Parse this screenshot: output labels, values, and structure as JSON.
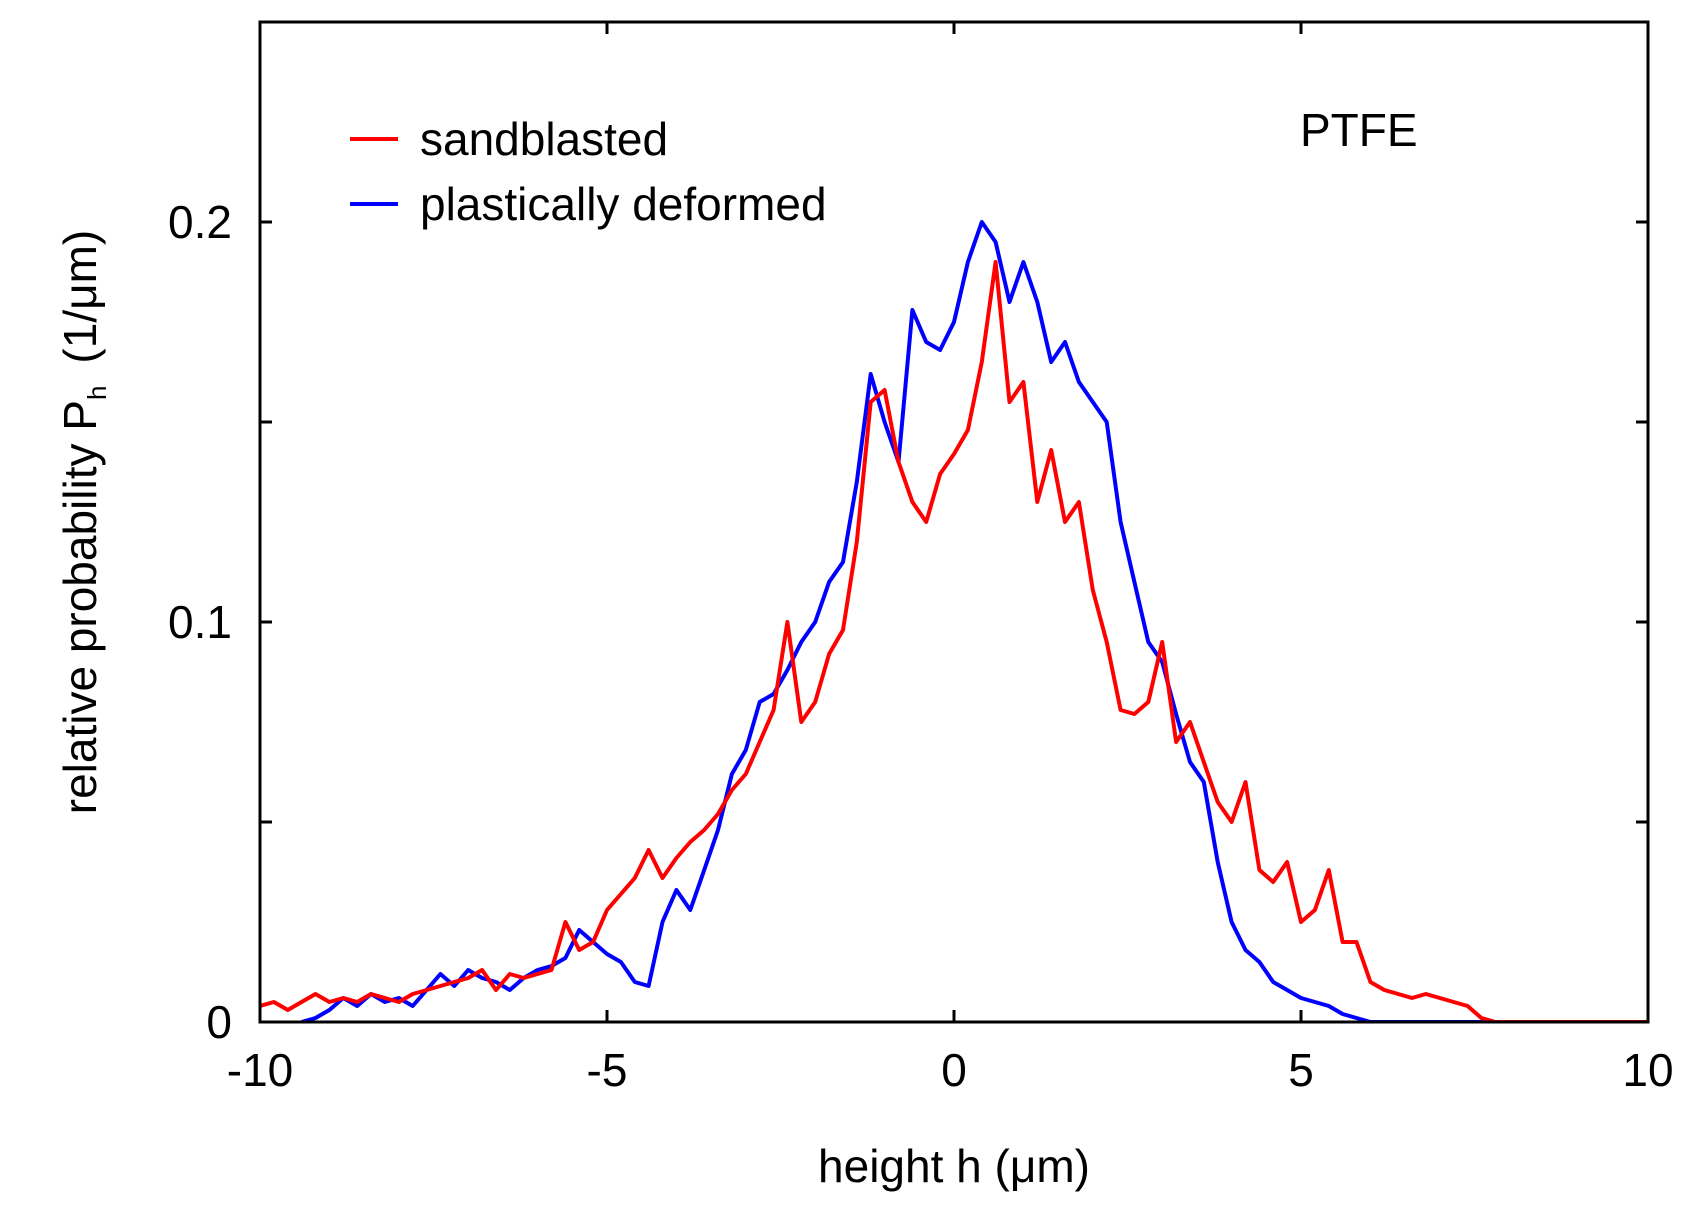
{
  "chart_data": {
    "type": "line",
    "title": "",
    "annotation": "PTFE",
    "xlabel": "height h  (μm)",
    "ylabel_main": "relative probability P",
    "ylabel_sub": "h",
    "ylabel_unit": "(1/μm)",
    "xlim": [
      -10,
      10
    ],
    "ylim": [
      0,
      0.25
    ],
    "xticks": [
      -10,
      -5,
      0,
      5,
      10
    ],
    "xtick_labels": [
      "-10",
      "-5",
      "0",
      "5",
      "10"
    ],
    "yticks": [
      0,
      0.05,
      0.1,
      0.15,
      0.2,
      0.25
    ],
    "ytick_labels": [
      "0",
      "",
      "0.1",
      "",
      "0.2",
      ""
    ],
    "grid": false,
    "legend_position": "top-left",
    "series": [
      {
        "name": "sandblasted",
        "color": "#ff0000",
        "x": [
          -10.0,
          -9.8,
          -9.6,
          -9.4,
          -9.2,
          -9.0,
          -8.8,
          -8.6,
          -8.4,
          -8.2,
          -8.0,
          -7.8,
          -7.6,
          -7.4,
          -7.2,
          -7.0,
          -6.8,
          -6.6,
          -6.4,
          -6.2,
          -6.0,
          -5.8,
          -5.6,
          -5.4,
          -5.2,
          -5.0,
          -4.8,
          -4.6,
          -4.4,
          -4.2,
          -4.0,
          -3.8,
          -3.6,
          -3.4,
          -3.2,
          -3.0,
          -2.8,
          -2.6,
          -2.4,
          -2.2,
          -2.0,
          -1.8,
          -1.6,
          -1.4,
          -1.2,
          -1.0,
          -0.8,
          -0.6,
          -0.4,
          -0.2,
          0.0,
          0.2,
          0.4,
          0.6,
          0.8,
          1.0,
          1.2,
          1.4,
          1.6,
          1.8,
          2.0,
          2.2,
          2.4,
          2.6,
          2.8,
          3.0,
          3.2,
          3.4,
          3.6,
          3.8,
          4.0,
          4.2,
          4.4,
          4.6,
          4.8,
          5.0,
          5.2,
          5.4,
          5.6,
          5.8,
          6.0,
          6.2,
          6.4,
          6.6,
          6.8,
          7.0,
          7.2,
          7.4,
          7.6,
          7.8,
          8.0,
          8.5,
          9.0,
          9.5,
          10.0
        ],
        "y": [
          0.004,
          0.005,
          0.003,
          0.005,
          0.007,
          0.005,
          0.006,
          0.005,
          0.007,
          0.006,
          0.005,
          0.007,
          0.008,
          0.009,
          0.01,
          0.011,
          0.013,
          0.008,
          0.012,
          0.011,
          0.012,
          0.013,
          0.025,
          0.018,
          0.02,
          0.028,
          0.032,
          0.036,
          0.043,
          0.036,
          0.041,
          0.045,
          0.048,
          0.052,
          0.058,
          0.062,
          0.07,
          0.078,
          0.1,
          0.075,
          0.08,
          0.092,
          0.098,
          0.12,
          0.155,
          0.158,
          0.14,
          0.13,
          0.125,
          0.137,
          0.142,
          0.148,
          0.165,
          0.19,
          0.155,
          0.16,
          0.13,
          0.143,
          0.125,
          0.13,
          0.108,
          0.095,
          0.078,
          0.077,
          0.08,
          0.095,
          0.07,
          0.075,
          0.065,
          0.055,
          0.05,
          0.06,
          0.038,
          0.035,
          0.04,
          0.025,
          0.028,
          0.038,
          0.02,
          0.02,
          0.01,
          0.008,
          0.007,
          0.006,
          0.007,
          0.006,
          0.005,
          0.004,
          0.001,
          0.0,
          0.0,
          0.0,
          0.0,
          0.0,
          0.0
        ]
      },
      {
        "name": "plastically deformed",
        "color": "#0000ff",
        "x": [
          -9.4,
          -9.2,
          -9.0,
          -8.8,
          -8.6,
          -8.4,
          -8.2,
          -8.0,
          -7.8,
          -7.6,
          -7.4,
          -7.2,
          -7.0,
          -6.8,
          -6.6,
          -6.4,
          -6.2,
          -6.0,
          -5.8,
          -5.6,
          -5.4,
          -5.2,
          -5.0,
          -4.8,
          -4.6,
          -4.4,
          -4.2,
          -4.0,
          -3.8,
          -3.6,
          -3.4,
          -3.2,
          -3.0,
          -2.8,
          -2.6,
          -2.4,
          -2.2,
          -2.0,
          -1.8,
          -1.6,
          -1.4,
          -1.2,
          -1.0,
          -0.8,
          -0.6,
          -0.4,
          -0.2,
          0.0,
          0.2,
          0.4,
          0.6,
          0.8,
          1.0,
          1.2,
          1.4,
          1.6,
          1.8,
          2.0,
          2.2,
          2.4,
          2.6,
          2.8,
          3.0,
          3.2,
          3.4,
          3.6,
          3.8,
          4.0,
          4.2,
          4.4,
          4.6,
          4.8,
          5.0,
          5.2,
          5.4,
          5.6,
          5.8,
          6.0,
          6.5,
          7.0,
          7.5,
          8.0,
          8.5,
          9.0,
          9.5,
          10.0
        ],
        "y": [
          0.0,
          0.001,
          0.003,
          0.006,
          0.004,
          0.007,
          0.005,
          0.006,
          0.004,
          0.008,
          0.012,
          0.009,
          0.013,
          0.011,
          0.01,
          0.008,
          0.011,
          0.013,
          0.014,
          0.016,
          0.023,
          0.02,
          0.017,
          0.015,
          0.01,
          0.009,
          0.025,
          0.033,
          0.028,
          0.038,
          0.048,
          0.062,
          0.068,
          0.08,
          0.082,
          0.088,
          0.095,
          0.1,
          0.11,
          0.115,
          0.135,
          0.162,
          0.15,
          0.14,
          0.178,
          0.17,
          0.168,
          0.175,
          0.19,
          0.2,
          0.195,
          0.18,
          0.19,
          0.18,
          0.165,
          0.17,
          0.16,
          0.155,
          0.15,
          0.125,
          0.11,
          0.095,
          0.09,
          0.077,
          0.065,
          0.06,
          0.04,
          0.025,
          0.018,
          0.015,
          0.01,
          0.008,
          0.006,
          0.005,
          0.004,
          0.002,
          0.001,
          0.0,
          0.0,
          0.0,
          0.0,
          0.0,
          0.0,
          0.0,
          0.0,
          0.0
        ]
      }
    ]
  }
}
